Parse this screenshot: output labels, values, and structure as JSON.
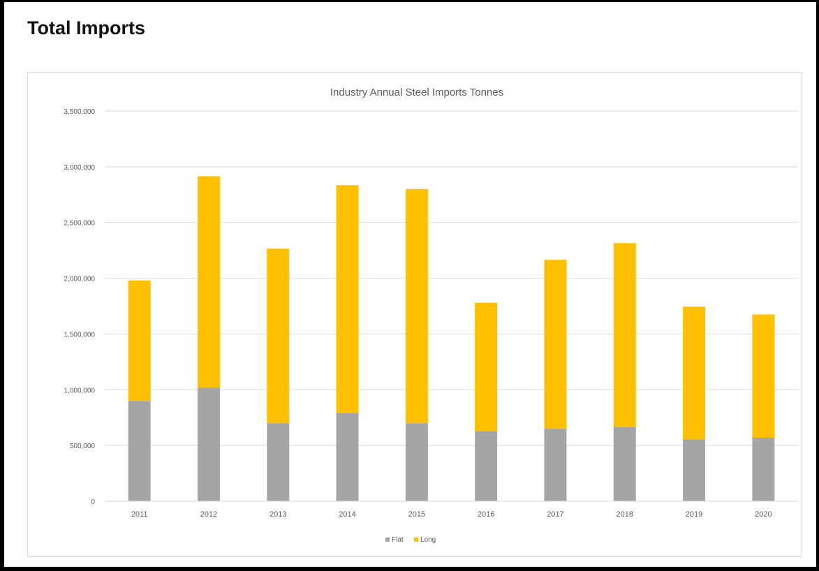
{
  "page": {
    "title": "Total Imports"
  },
  "colors": {
    "flat": "#a5a5a5",
    "long": "#ffc000",
    "grid": "#d9d9d9",
    "text": "#595959"
  },
  "chart_data": {
    "type": "bar",
    "stacked": true,
    "title": "Industry Annual Steel Imports Tonnes",
    "xlabel": "",
    "ylabel": "",
    "categories": [
      "2011",
      "2012",
      "2013",
      "2014",
      "2015",
      "2016",
      "2017",
      "2018",
      "2019",
      "2020"
    ],
    "series": [
      {
        "name": "Flat",
        "color": "#a5a5a5",
        "values": [
          900000,
          1020000,
          700000,
          790000,
          700000,
          630000,
          650000,
          665000,
          555000,
          570000
        ]
      },
      {
        "name": "Long",
        "color": "#ffc000",
        "values": [
          1080000,
          1895000,
          1565000,
          2045000,
          2100000,
          1150000,
          1515000,
          1650000,
          1190000,
          1105000
        ]
      }
    ],
    "ylim": [
      0,
      3500000
    ],
    "yticks": [
      0,
      500000,
      1000000,
      1500000,
      2000000,
      2500000,
      3000000,
      3500000
    ],
    "ytick_labels": [
      "0",
      "500,000",
      "1,000,000",
      "1,500,000",
      "2,000,000",
      "2,500,000",
      "3,000,000",
      "3,500,000"
    ],
    "grid": true,
    "legend_position": "bottom"
  }
}
